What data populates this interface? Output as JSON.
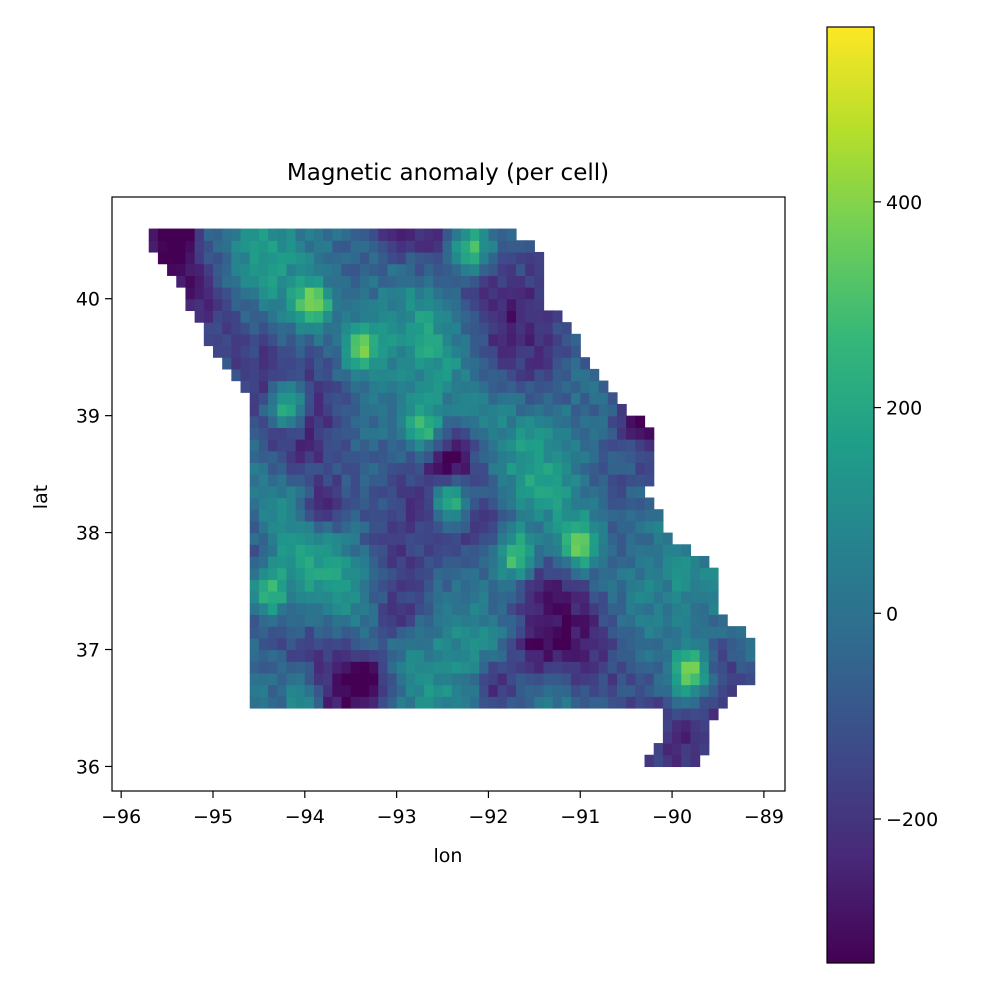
{
  "chart_data": {
    "type": "heatmap",
    "title": "Magnetic anomaly (per cell)",
    "xlabel": "lon",
    "ylabel": "lat",
    "xlim": [
      -96.1,
      -88.77
    ],
    "ylim": [
      35.79,
      40.87
    ],
    "xticks": [
      -96,
      -95,
      -94,
      -93,
      -92,
      -91,
      -90,
      -89
    ],
    "xtick_labels": [
      "−96",
      "−95",
      "−94",
      "−93",
      "−92",
      "−91",
      "−90",
      "−89"
    ],
    "yticks": [
      36,
      37,
      38,
      39,
      40
    ],
    "ytick_labels": [
      "36",
      "37",
      "38",
      "39",
      "40"
    ],
    "colormap": "viridis",
    "colorbar": {
      "vmin": -340,
      "vmax": 570,
      "ticks": [
        -200,
        0,
        200,
        400
      ],
      "tick_labels": [
        "−200",
        "0",
        "200",
        "400"
      ]
    },
    "cell_size_deg": 0.1,
    "region_outline": [
      [
        -95.77,
        40.58
      ],
      [
        -91.73,
        40.61
      ],
      [
        -91.45,
        40.37
      ],
      [
        -91.42,
        40.0
      ],
      [
        -91.1,
        39.75
      ],
      [
        -90.7,
        39.2
      ],
      [
        -90.33,
        38.95
      ],
      [
        -90.2,
        38.85
      ],
      [
        -90.15,
        38.7
      ],
      [
        -90.27,
        38.3
      ],
      [
        -90.0,
        37.97
      ],
      [
        -89.52,
        37.7
      ],
      [
        -89.5,
        37.32
      ],
      [
        -89.1,
        37.05
      ],
      [
        -89.1,
        36.78
      ],
      [
        -89.5,
        36.5
      ],
      [
        -89.7,
        36.0
      ],
      [
        -90.37,
        36.0
      ],
      [
        -90.1,
        36.3
      ],
      [
        -90.15,
        36.5
      ],
      [
        -94.62,
        36.5
      ],
      [
        -94.62,
        39.15
      ],
      [
        -94.9,
        39.4
      ],
      [
        -95.1,
        39.7
      ],
      [
        -95.3,
        40.0
      ]
    ],
    "anomaly_centers": [
      {
        "lon": -89.8,
        "lat": 36.8,
        "value": 570
      },
      {
        "lon": -94.2,
        "lat": 39.1,
        "value": 540
      },
      {
        "lon": -92.4,
        "lat": 38.3,
        "value": 520
      },
      {
        "lon": -91.7,
        "lat": 37.8,
        "value": 500
      },
      {
        "lon": -93.9,
        "lat": 39.95,
        "value": 480
      },
      {
        "lon": -93.4,
        "lat": 39.6,
        "value": 460
      },
      {
        "lon": -91.0,
        "lat": 37.9,
        "value": 450
      },
      {
        "lon": -92.7,
        "lat": 38.9,
        "value": 420
      },
      {
        "lon": -94.4,
        "lat": 37.5,
        "value": 380
      },
      {
        "lon": -92.2,
        "lat": 40.4,
        "value": 420
      },
      {
        "lon": -94.0,
        "lat": 36.6,
        "value": 300
      },
      {
        "lon": -95.4,
        "lat": 40.5,
        "value": -330
      },
      {
        "lon": -93.3,
        "lat": 36.8,
        "value": -330
      },
      {
        "lon": -93.8,
        "lat": 38.2,
        "value": -300
      },
      {
        "lon": -92.4,
        "lat": 38.6,
        "value": -260
      },
      {
        "lon": -89.6,
        "lat": 37.9,
        "value": -300
      },
      {
        "lon": -91.9,
        "lat": 36.7,
        "value": -250
      },
      {
        "lon": -90.3,
        "lat": 39.0,
        "value": -280
      },
      {
        "lon": -91.5,
        "lat": 37.0,
        "value": -220
      },
      {
        "lon": -93.0,
        "lat": 37.3,
        "value": -200
      }
    ]
  }
}
